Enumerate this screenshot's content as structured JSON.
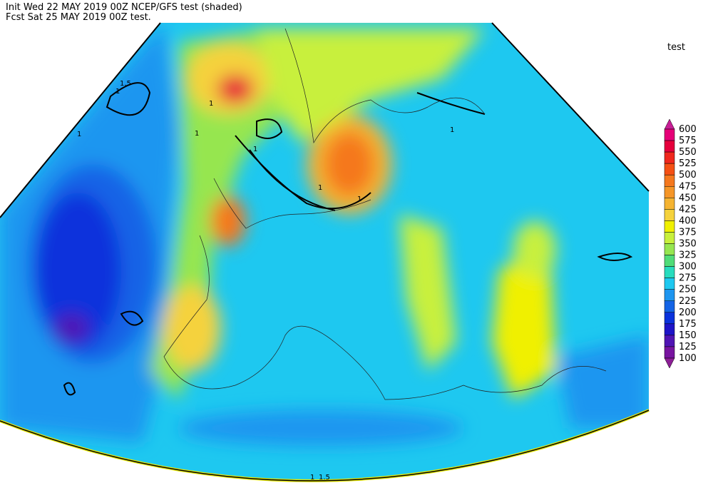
{
  "header": {
    "init_line": "Init  Wed 22 MAY 2019 00Z  NCEP/GFS test (shaded)",
    "fcst_line": "Fcst Sat 25 MAY 2019 00Z  test."
  },
  "legend": {
    "title": "test",
    "levels": [
      600,
      575,
      550,
      525,
      500,
      475,
      450,
      425,
      400,
      375,
      350,
      325,
      300,
      275,
      250,
      225,
      200,
      175,
      150,
      125,
      100
    ],
    "colors": [
      "#c81e96",
      "#e60078",
      "#e6003c",
      "#f0281e",
      "#f55014",
      "#f5781e",
      "#f59628",
      "#f5b432",
      "#f5d23c",
      "#f0f000",
      "#c8f03c",
      "#96e650",
      "#50dc78",
      "#28dcbe",
      "#1ec8f0",
      "#1e96f0",
      "#1464e6",
      "#0a32dc",
      "#1e14c8",
      "#5014b4",
      "#7814a0",
      "#8c1e96"
    ]
  },
  "contour_labels": [
    "1.5",
    "1",
    "1",
    "1",
    "1",
    "1",
    "1",
    "1",
    "1",
    "1",
    "1.5"
  ]
}
